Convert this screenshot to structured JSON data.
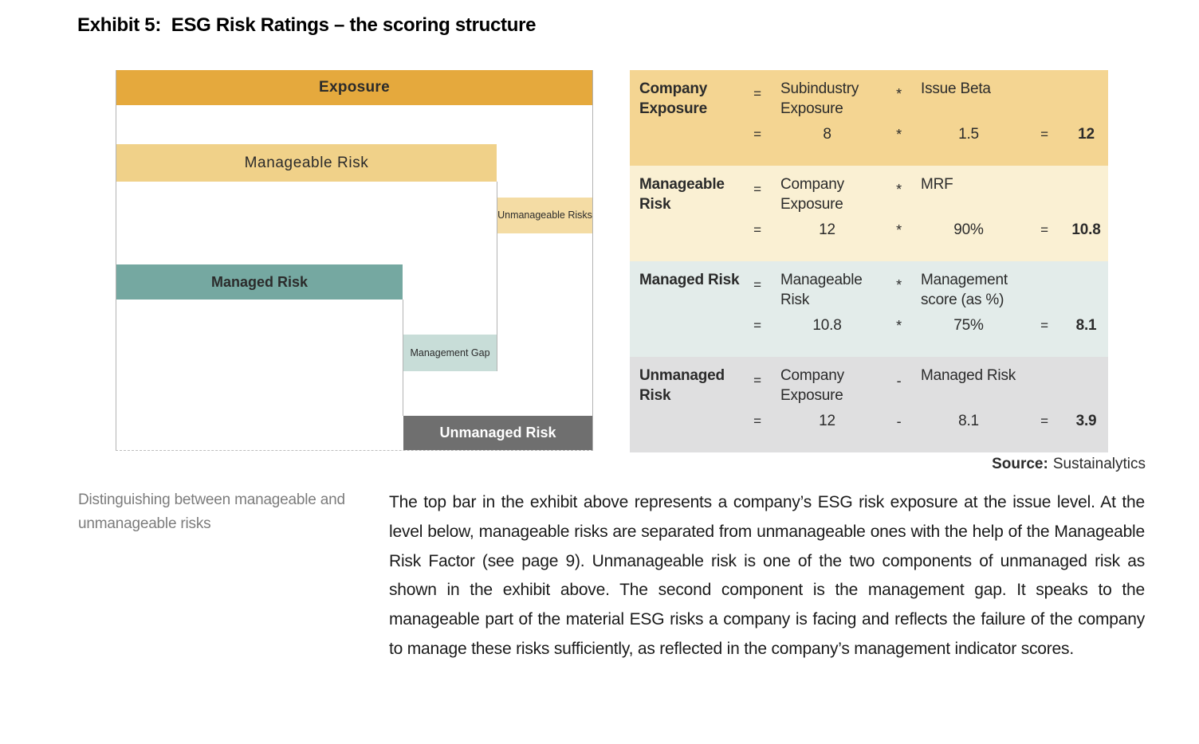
{
  "title": "Exhibit 5:  ESG Risk Ratings – the scoring structure",
  "diagram": {
    "labels": {
      "exposure": "Exposure",
      "manageable_risk": "Manageable Risk",
      "unmanageable_risks": "Unmanageable Risks",
      "managed_risk": "Managed Risk",
      "management_gap": "Management Gap",
      "unmanaged_risk": "Unmanaged Risk"
    },
    "colors": {
      "exposure": "#e5a93d",
      "manageable_risk": "#f0d189",
      "unmanageable_risks": "#f4dca4",
      "managed_risk": "#75a8a1",
      "management_gap": "#c8ddd8",
      "unmanaged_risk": "#6f6f6f"
    }
  },
  "table": {
    "row_colors": [
      "#f4d592",
      "#faf0d3",
      "#e3ecea",
      "#dfdfe0"
    ],
    "rows": [
      {
        "label": "Company Exposure",
        "eq": "=",
        "operand1": "Subindustry Exposure",
        "op": "*",
        "operand2": "Issue Beta",
        "veq": "=",
        "v1": "8",
        "vop": "*",
        "v2": "1.5",
        "eq2": "=",
        "result": "12"
      },
      {
        "label": "Manageable Risk",
        "eq": "=",
        "operand1": "Company Exposure",
        "op": "*",
        "operand2": "MRF",
        "veq": "=",
        "v1": "12",
        "vop": "*",
        "v2": "90%",
        "eq2": "=",
        "result": "10.8"
      },
      {
        "label": "Managed Risk",
        "eq": "=",
        "operand1": "Manageable Risk",
        "op": "*",
        "operand2": "Management score (as %)",
        "veq": "=",
        "v1": "10.8",
        "vop": "*",
        "v2": "75%",
        "eq2": "=",
        "result": "8.1"
      },
      {
        "label": "Unmanaged Risk",
        "eq": "=",
        "operand1": "Company Exposure",
        "op": "-",
        "operand2": "Managed Risk",
        "veq": "=",
        "v1": "12",
        "vop": "-",
        "v2": "8.1",
        "eq2": "=",
        "result": "3.9"
      }
    ]
  },
  "source": {
    "label": "Source:",
    "value": "Sustainalytics"
  },
  "sidenote": "Distinguishing between manageable and unmanageable risks",
  "paragraph": "The top bar in the exhibit above represents a company’s ESG risk exposure at the issue level. At the level below, manageable risks are separated from unmanageable ones with the help of the Manageable Risk Factor (see page 9). Unmanageable risk is one of the two components of unmanaged risk as shown in the exhibit above. The second component is the management gap. It speaks to the manageable part of the material ESG risks a company is facing and reflects the failure of the company to manage these risks sufficiently, as reflected in the company’s management indicator scores."
}
